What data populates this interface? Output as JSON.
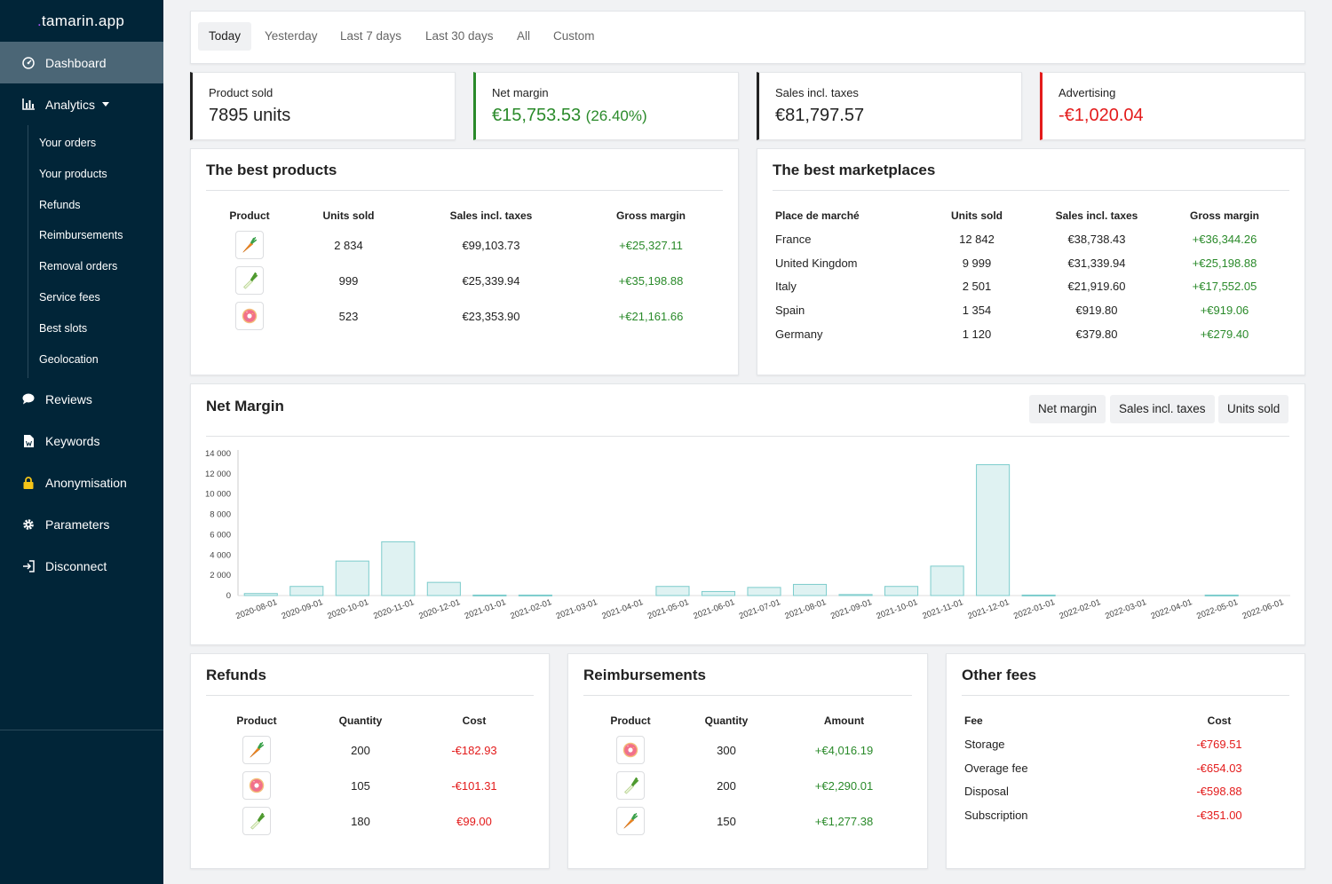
{
  "app": {
    "logo_text": "tamarin.app",
    "logo_dot": "."
  },
  "sidebar": {
    "dashboard": "Dashboard",
    "analytics": "Analytics",
    "analytics_items": [
      "Your orders",
      "Your products",
      "Refunds",
      "Reimbursements",
      "Removal orders",
      "Service fees",
      "Best slots",
      "Geolocation"
    ],
    "reviews": "Reviews",
    "keywords": "Keywords",
    "anonymisation": "Anonymisation",
    "parameters": "Parameters",
    "disconnect": "Disconnect"
  },
  "tabs": [
    "Today",
    "Yesterday",
    "Last 7 days",
    "Last 30 days",
    "All",
    "Custom"
  ],
  "stats": {
    "product_sold": {
      "label": "Product sold",
      "value": "7895 units"
    },
    "net_margin": {
      "label": "Net margin",
      "value": "€15,753.53",
      "pct": "(26.40%)"
    },
    "sales": {
      "label": "Sales incl. taxes",
      "value": "€81,797.57"
    },
    "advertising": {
      "label": "Advertising",
      "value": "-€1,020.04"
    }
  },
  "best_products": {
    "title": "The best products",
    "headers": [
      "Product",
      "Units sold",
      "Sales incl. taxes",
      "Gross margin"
    ],
    "rows": [
      {
        "icon": "carrot-icon",
        "units": "2 834",
        "sales": "€99,103.73",
        "margin": "+€25,327.11"
      },
      {
        "icon": "leek-icon",
        "units": "999",
        "sales": "€25,339.94",
        "margin": "+€35,198.88"
      },
      {
        "icon": "donut-icon",
        "units": "523",
        "sales": "€23,353.90",
        "margin": "+€21,161.66"
      }
    ]
  },
  "best_marketplaces": {
    "title": "The best marketplaces",
    "headers": [
      "Place de marché",
      "Units sold",
      "Sales incl. taxes",
      "Gross margin"
    ],
    "rows": [
      {
        "place": "France",
        "units": "12 842",
        "sales": "€38,738.43",
        "margin": "+€36,344.26"
      },
      {
        "place": "United Kingdom",
        "units": "9 999",
        "sales": "€31,339.94",
        "margin": "+€25,198.88"
      },
      {
        "place": "Italy",
        "units": "2 501",
        "sales": "€21,919.60",
        "margin": "+€17,552.05"
      },
      {
        "place": "Spain",
        "units": "1 354",
        "sales": "€919.80",
        "margin": "+€919.06"
      },
      {
        "place": "Germany",
        "units": "1 120",
        "sales": "€379.80",
        "margin": "+€279.40"
      }
    ]
  },
  "net_margin_chart": {
    "title": "Net Margin",
    "buttons": [
      "Net margin",
      "Sales incl. taxes",
      "Units sold"
    ]
  },
  "chart_data": {
    "type": "bar",
    "title": "Net Margin",
    "categories": [
      "2020-08-01",
      "2020-09-01",
      "2020-10-01",
      "2020-11-01",
      "2020-12-01",
      "2021-01-01",
      "2021-02-01",
      "2021-03-01",
      "2021-04-01",
      "2021-05-01",
      "2021-06-01",
      "2021-07-01",
      "2021-08-01",
      "2021-09-01",
      "2021-10-01",
      "2021-11-01",
      "2021-12-01",
      "2022-01-01",
      "2022-02-01",
      "2022-03-01",
      "2022-04-01",
      "2022-05-01",
      "2022-06-01"
    ],
    "values": [
      200,
      900,
      3400,
      5300,
      1300,
      50,
      50,
      0,
      0,
      900,
      400,
      800,
      1100,
      100,
      900,
      2900,
      12900,
      50,
      0,
      0,
      0,
      50,
      0
    ],
    "yticks": [
      "0",
      "2 000",
      "4 000",
      "6 000",
      "8 000",
      "10 000",
      "12 000",
      "14 000"
    ],
    "ylim": [
      0,
      14000
    ],
    "xlabel": "",
    "ylabel": ""
  },
  "refunds": {
    "title": "Refunds",
    "headers": [
      "Product",
      "Quantity",
      "Cost"
    ],
    "rows": [
      {
        "icon": "carrot-icon",
        "qty": "200",
        "cost": "-€182.93"
      },
      {
        "icon": "donut-icon",
        "qty": "105",
        "cost": "-€101.31"
      },
      {
        "icon": "leek-icon",
        "qty": "180",
        "cost": "€99.00"
      }
    ]
  },
  "reimbursements": {
    "title": "Reimbursements",
    "headers": [
      "Product",
      "Quantity",
      "Amount"
    ],
    "rows": [
      {
        "icon": "donut-icon",
        "qty": "300",
        "amount": "+€4,016.19"
      },
      {
        "icon": "leek-icon",
        "qty": "200",
        "amount": "+€2,290.01"
      },
      {
        "icon": "carrot-icon",
        "qty": "150",
        "amount": "+€1,277.38"
      }
    ]
  },
  "other_fees": {
    "title": "Other fees",
    "headers": [
      "Fee",
      "Cost"
    ],
    "rows": [
      {
        "fee": "Storage",
        "cost": "-€769.51"
      },
      {
        "fee": "Overage fee",
        "cost": "-€654.03"
      },
      {
        "fee": "Disposal",
        "cost": "-€598.88"
      },
      {
        "fee": "Subscription",
        "cost": "-€351.00"
      }
    ]
  },
  "colors": {
    "sidebar": "#012538",
    "green": "#2a8a2a",
    "red": "#e31b1b",
    "bar_fill": "#dff2f2",
    "bar_stroke": "#7ccccc"
  }
}
